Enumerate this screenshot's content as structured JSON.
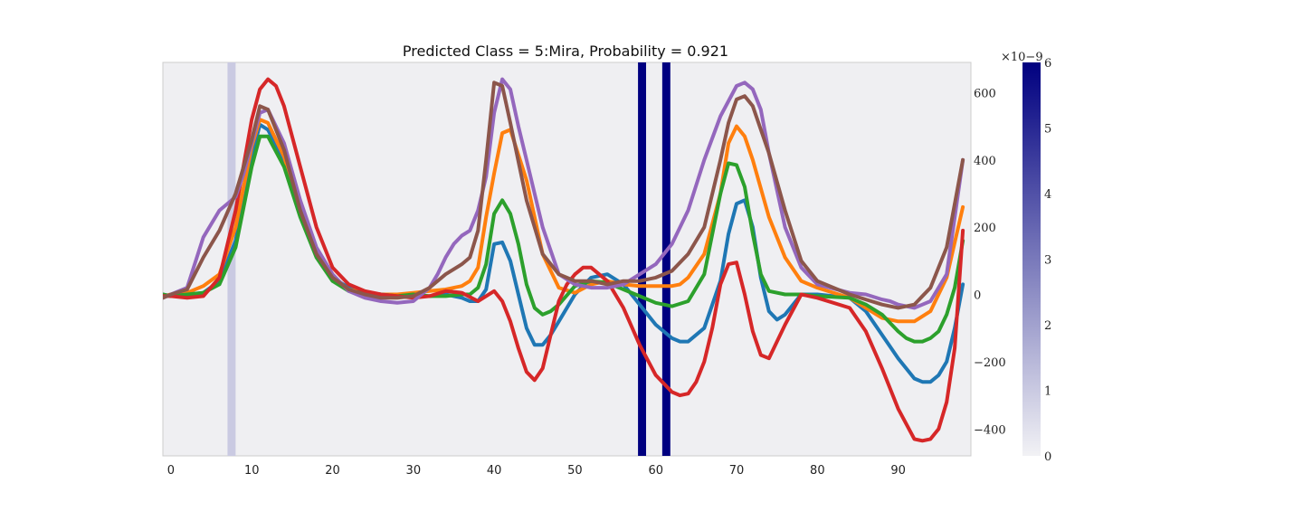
{
  "chart_data": {
    "type": "line",
    "title": "Predicted Class = 5:Mira, Probability = 0.921",
    "xlabel": "",
    "ylabel": "",
    "xlim": [
      -1,
      99
    ],
    "ylim": [
      -480,
      690
    ],
    "y_axis_side": "right",
    "grid": false,
    "legend": "none",
    "x_ticks": [
      0,
      10,
      20,
      30,
      40,
      50,
      60,
      70,
      80,
      90
    ],
    "y_ticks": [
      -400,
      -200,
      0,
      200,
      400,
      600
    ],
    "y_tick_labels": [
      "−400",
      "−200",
      "0",
      "200",
      "400",
      "600"
    ],
    "background_color": "#efeff2",
    "heatmap": {
      "type": "heatmap",
      "colormap": [
        "#f2f2f5",
        "#000080"
      ],
      "range": [
        0,
        6
      ],
      "colorbar_ticks": [
        0,
        1,
        2,
        3,
        4,
        5,
        6
      ],
      "colorbar_scale_label": "×10−9",
      "highlighted_bins": [
        {
          "x": 7.5,
          "value": 1.0
        },
        {
          "x": 58.3,
          "value": 6.0
        },
        {
          "x": 61.3,
          "value": 6.0
        }
      ]
    },
    "series": [
      {
        "color": "#1f77b4",
        "x": [
          -1,
          0,
          2,
          4,
          6,
          8,
          10,
          11,
          12,
          14,
          16,
          18,
          20,
          22,
          24,
          26,
          28,
          30,
          32,
          34,
          36,
          37,
          38,
          39,
          40,
          41,
          42,
          43,
          44,
          45,
          46,
          47,
          48,
          50,
          52,
          54,
          56,
          58,
          60,
          62,
          63,
          64,
          66,
          68,
          69,
          70,
          71,
          72,
          73,
          74,
          75,
          76,
          78,
          80,
          84,
          86,
          88,
          90,
          92,
          93,
          94,
          95,
          96,
          97,
          98
        ],
        "y": [
          0,
          -5,
          0,
          5,
          40,
          160,
          410,
          505,
          490,
          400,
          250,
          120,
          50,
          20,
          5,
          0,
          -5,
          -5,
          -5,
          0,
          -10,
          -20,
          -20,
          15,
          150,
          155,
          100,
          0,
          -100,
          -150,
          -150,
          -120,
          -80,
          0,
          50,
          60,
          30,
          -30,
          -90,
          -130,
          -140,
          -140,
          -100,
          40,
          180,
          270,
          280,
          200,
          50,
          -50,
          -75,
          -60,
          0,
          0,
          -10,
          -50,
          -120,
          -190,
          -250,
          -260,
          -260,
          -240,
          -200,
          -100,
          30
        ]
      },
      {
        "color": "#ff7f0e",
        "x": [
          -1,
          0,
          2,
          4,
          6,
          8,
          10,
          11,
          12,
          14,
          16,
          18,
          20,
          22,
          24,
          26,
          28,
          30,
          32,
          34,
          35,
          36,
          37,
          38,
          39,
          40,
          41,
          42,
          44,
          46,
          48,
          50,
          52,
          54,
          56,
          58,
          60,
          62,
          63,
          64,
          66,
          68,
          69,
          70,
          71,
          72,
          74,
          76,
          78,
          80,
          84,
          86,
          88,
          90,
          92,
          94,
          96,
          98
        ],
        "y": [
          -5,
          0,
          5,
          25,
          60,
          200,
          440,
          520,
          510,
          410,
          250,
          120,
          50,
          15,
          5,
          0,
          0,
          5,
          10,
          15,
          20,
          25,
          40,
          80,
          230,
          360,
          480,
          490,
          340,
          120,
          20,
          5,
          30,
          40,
          30,
          25,
          25,
          25,
          30,
          50,
          120,
          300,
          450,
          500,
          470,
          400,
          230,
          110,
          40,
          20,
          -10,
          -40,
          -70,
          -80,
          -80,
          -50,
          50,
          260
        ]
      },
      {
        "color": "#2ca02c",
        "x": [
          -1,
          0,
          2,
          4,
          6,
          8,
          10,
          11,
          12,
          14,
          16,
          18,
          20,
          22,
          24,
          26,
          28,
          30,
          32,
          34,
          36,
          37,
          38,
          39,
          40,
          41,
          42,
          43,
          44,
          45,
          46,
          47,
          48,
          50,
          52,
          54,
          56,
          58,
          60,
          62,
          64,
          66,
          68,
          69,
          70,
          71,
          72,
          73,
          74,
          76,
          78,
          80,
          84,
          86,
          88,
          90,
          91,
          92,
          93,
          94,
          95,
          96,
          97,
          98
        ],
        "y": [
          0,
          -5,
          0,
          5,
          30,
          140,
          380,
          470,
          470,
          380,
          230,
          110,
          40,
          10,
          5,
          0,
          -5,
          0,
          -5,
          -5,
          0,
          0,
          20,
          90,
          240,
          280,
          240,
          150,
          30,
          -40,
          -60,
          -50,
          -30,
          25,
          40,
          35,
          15,
          -5,
          -25,
          -35,
          -20,
          60,
          300,
          390,
          385,
          320,
          180,
          60,
          10,
          0,
          0,
          -5,
          -10,
          -30,
          -60,
          -110,
          -130,
          -140,
          -140,
          -130,
          -110,
          -60,
          20,
          160
        ]
      },
      {
        "color": "#d62728",
        "x": [
          -1,
          0,
          2,
          4,
          6,
          8,
          10,
          11,
          12,
          13,
          14,
          16,
          18,
          20,
          22,
          24,
          26,
          28,
          30,
          32,
          34,
          36,
          38,
          40,
          41,
          42,
          43,
          44,
          45,
          46,
          47,
          48,
          49,
          50,
          51,
          52,
          54,
          56,
          58,
          60,
          62,
          63,
          64,
          65,
          66,
          67,
          68,
          69,
          70,
          71,
          72,
          73,
          74,
          76,
          78,
          80,
          84,
          86,
          88,
          90,
          92,
          93,
          94,
          95,
          96,
          97,
          98
        ],
        "y": [
          -5,
          -5,
          -10,
          -5,
          50,
          250,
          520,
          610,
          640,
          620,
          560,
          380,
          200,
          80,
          30,
          10,
          0,
          -5,
          -10,
          -5,
          10,
          5,
          -20,
          10,
          -20,
          -80,
          -160,
          -230,
          -255,
          -220,
          -120,
          -20,
          30,
          60,
          80,
          80,
          40,
          -40,
          -150,
          -240,
          -290,
          -300,
          -295,
          -260,
          -200,
          -100,
          30,
          90,
          95,
          0,
          -110,
          -180,
          -190,
          -90,
          0,
          -10,
          -40,
          -110,
          -220,
          -340,
          -430,
          -435,
          -430,
          -400,
          -320,
          -160,
          190
        ]
      },
      {
        "color": "#9467bd",
        "x": [
          -1,
          0,
          2,
          4,
          6,
          8,
          9,
          10,
          11,
          12,
          14,
          16,
          18,
          20,
          22,
          24,
          26,
          28,
          30,
          32,
          33,
          34,
          35,
          36,
          37,
          38,
          39,
          40,
          41,
          42,
          43,
          44,
          46,
          48,
          50,
          52,
          54,
          56,
          58,
          60,
          62,
          64,
          66,
          68,
          70,
          71,
          72,
          73,
          74,
          76,
          78,
          80,
          84,
          86,
          88,
          89,
          90,
          92,
          94,
          96,
          98
        ],
        "y": [
          -10,
          0,
          20,
          170,
          250,
          290,
          360,
          450,
          540,
          550,
          450,
          280,
          140,
          60,
          10,
          -10,
          -20,
          -25,
          -20,
          20,
          60,
          110,
          150,
          175,
          190,
          250,
          350,
          540,
          640,
          610,
          500,
          400,
          200,
          60,
          30,
          20,
          20,
          30,
          60,
          90,
          150,
          250,
          400,
          530,
          620,
          630,
          610,
          550,
          420,
          200,
          80,
          30,
          5,
          0,
          -15,
          -20,
          -30,
          -40,
          -20,
          60,
          400
        ]
      },
      {
        "color": "#8c564b",
        "x": [
          -1,
          0,
          2,
          4,
          6,
          8,
          10,
          11,
          12,
          14,
          16,
          18,
          20,
          22,
          24,
          26,
          28,
          30,
          32,
          34,
          36,
          37,
          38,
          39,
          40,
          41,
          42,
          44,
          46,
          48,
          50,
          52,
          54,
          56,
          58,
          60,
          62,
          64,
          66,
          68,
          69,
          70,
          71,
          72,
          74,
          76,
          78,
          80,
          84,
          86,
          88,
          90,
          92,
          94,
          96,
          98
        ],
        "y": [
          -10,
          0,
          15,
          110,
          190,
          300,
          460,
          560,
          550,
          430,
          250,
          120,
          50,
          15,
          0,
          -10,
          -10,
          -5,
          20,
          60,
          90,
          110,
          190,
          400,
          630,
          620,
          510,
          280,
          120,
          60,
          40,
          40,
          30,
          40,
          40,
          50,
          70,
          120,
          200,
          400,
          510,
          580,
          590,
          560,
          420,
          250,
          100,
          40,
          0,
          -15,
          -30,
          -40,
          -30,
          20,
          140,
          400
        ]
      }
    ]
  }
}
